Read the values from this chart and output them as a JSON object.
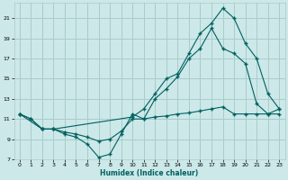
{
  "xlabel": "Humidex (Indice chaleur)",
  "bg_color": "#cce8e8",
  "grid_color": "#aacccc",
  "line_color": "#006060",
  "xlim": [
    -0.5,
    23.5
  ],
  "ylim": [
    7,
    22.5
  ],
  "xticks": [
    0,
    1,
    2,
    3,
    4,
    5,
    6,
    7,
    8,
    9,
    10,
    11,
    12,
    13,
    14,
    15,
    16,
    17,
    18,
    19,
    20,
    21,
    22,
    23
  ],
  "yticks": [
    7,
    9,
    11,
    13,
    15,
    17,
    19,
    21
  ],
  "series1_x": [
    0,
    1,
    2,
    3,
    4,
    5,
    6,
    7,
    8,
    9,
    10,
    11,
    12,
    13,
    14,
    15,
    16,
    17,
    18,
    19,
    20,
    21,
    22,
    23
  ],
  "series1_y": [
    11.5,
    11.0,
    10.0,
    10.0,
    9.5,
    9.2,
    8.5,
    7.2,
    7.5,
    9.5,
    11.5,
    11.0,
    13.0,
    14.0,
    15.2,
    17.0,
    18.0,
    20.0,
    18.0,
    17.5,
    16.5,
    12.5,
    11.5,
    12.0
  ],
  "series2_x": [
    0,
    1,
    2,
    3,
    4,
    5,
    6,
    7,
    8,
    9,
    10,
    11,
    12,
    13,
    14,
    15,
    16,
    17,
    18,
    19,
    20,
    21,
    22,
    23
  ],
  "series2_y": [
    11.5,
    11.0,
    10.0,
    10.0,
    9.7,
    9.5,
    9.2,
    8.8,
    9.0,
    9.8,
    11.0,
    11.0,
    11.2,
    11.3,
    11.5,
    11.6,
    11.8,
    12.0,
    12.2,
    11.5,
    11.5,
    11.5,
    11.5,
    11.5
  ],
  "series3_x": [
    0,
    2,
    3,
    10,
    11,
    12,
    13,
    14,
    15,
    16,
    17,
    18,
    19,
    20,
    21,
    22,
    23
  ],
  "series3_y": [
    11.5,
    10.0,
    10.0,
    11.2,
    12.0,
    13.5,
    15.0,
    15.5,
    17.5,
    19.5,
    20.5,
    22.0,
    21.0,
    18.5,
    17.0,
    13.5,
    12.0
  ]
}
